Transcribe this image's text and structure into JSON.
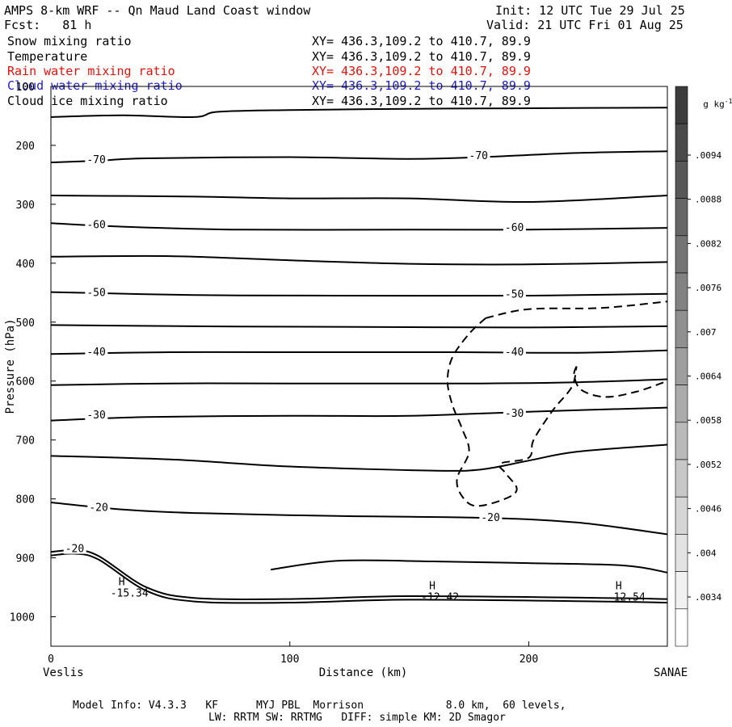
{
  "header": {
    "title": "AMPS 8-km WRF -- Qn Maud Land Coast window",
    "fcst": "Fcst:   81 h",
    "init": "Init: 12 UTC Tue 29 Jul 25",
    "valid": "Valid: 21 UTC Fri 01 Aug 25"
  },
  "fields": [
    {
      "name": "Snow mixing ratio",
      "xy": "XY= 436.3,109.2 to 410.7, 89.9",
      "color": "#000000"
    },
    {
      "name": "Temperature",
      "xy": "XY= 436.3,109.2 to 410.7, 89.9",
      "color": "#000000"
    },
    {
      "name": "Rain water mixing ratio",
      "xy": "XY= 436.3,109.2 to 410.7, 89.9",
      "color": "#e01010"
    },
    {
      "name": "Cloud water mixing ratio",
      "xy": "XY= 436.3,109.2 to 410.7, 89.9",
      "color": "#2020c0"
    },
    {
      "name": "Cloud ice mixing ratio",
      "xy": "XY= 436.3,109.2 to 410.7, 89.9",
      "color": "#000000"
    }
  ],
  "colorbar": {
    "unit": "g kg",
    "unit_sup": "-1",
    "labels": [
      ".0094",
      ".0088",
      ".0082",
      ".0076",
      ".007",
      ".0064",
      ".0058",
      ".0052",
      ".0046",
      ".004",
      ".0034"
    ]
  },
  "footer": {
    "line1": "Model Info: V4.3.3   KF      MYJ PBL  Morrison             8.0 km,  60 levels,",
    "line2": "LW: RRTM SW: RRTMG   DIFF: simple KM: 2D Smagor"
  },
  "chart_data": {
    "type": "line",
    "xlabel": "Distance (km)",
    "ylabel": "Pressure (hPa)",
    "xlim": [
      0,
      258
    ],
    "ylim": [
      1050,
      100
    ],
    "xticks": [
      0,
      100,
      200
    ],
    "yticks": [
      100,
      200,
      300,
      400,
      500,
      600,
      700,
      800,
      900,
      1000
    ],
    "x_endpoint_labels": {
      "left": "Veslis",
      "right": "SANAE"
    },
    "isotherms": [
      {
        "label": "-70",
        "points": [
          [
            0,
            152
          ],
          [
            30,
            149
          ],
          [
            60,
            152
          ],
          [
            70,
            143
          ],
          [
            100,
            140
          ],
          [
            150,
            138
          ],
          [
            200,
            137
          ],
          [
            258,
            136
          ]
        ]
      },
      {
        "label": "-70",
        "points": [
          [
            0,
            229
          ],
          [
            20,
            226
          ],
          [
            40,
            222
          ],
          [
            100,
            220
          ],
          [
            150,
            223
          ],
          [
            180,
            220
          ],
          [
            220,
            213
          ],
          [
            258,
            210
          ]
        ]
      },
      {
        "label": "",
        "points": [
          [
            0,
            285
          ],
          [
            60,
            287
          ],
          [
            100,
            290
          ],
          [
            150,
            290
          ],
          [
            200,
            296
          ],
          [
            258,
            285
          ]
        ]
      },
      {
        "label": "-60",
        "points": [
          [
            0,
            332
          ],
          [
            30,
            338
          ],
          [
            80,
            343
          ],
          [
            150,
            343
          ],
          [
            200,
            343
          ],
          [
            258,
            340
          ]
        ]
      },
      {
        "label": "",
        "points": [
          [
            0,
            389
          ],
          [
            50,
            388
          ],
          [
            100,
            395
          ],
          [
            150,
            401
          ],
          [
            200,
            402
          ],
          [
            258,
            398
          ]
        ]
      },
      {
        "label": "-50",
        "points": [
          [
            0,
            449
          ],
          [
            60,
            454
          ],
          [
            120,
            455
          ],
          [
            200,
            455
          ],
          [
            258,
            452
          ]
        ]
      },
      {
        "label": "",
        "points": [
          [
            0,
            505
          ],
          [
            60,
            507
          ],
          [
            120,
            508
          ],
          [
            200,
            509
          ],
          [
            258,
            507
          ]
        ]
      },
      {
        "label": "-40",
        "points": [
          [
            0,
            554
          ],
          [
            50,
            551
          ],
          [
            100,
            551
          ],
          [
            170,
            551
          ],
          [
            220,
            552
          ],
          [
            258,
            548
          ]
        ]
      },
      {
        "label": "",
        "points": [
          [
            0,
            607
          ],
          [
            50,
            604
          ],
          [
            100,
            604
          ],
          [
            180,
            604
          ],
          [
            220,
            602
          ],
          [
            258,
            597
          ]
        ]
      },
      {
        "label": "-30",
        "points": [
          [
            0,
            667
          ],
          [
            40,
            661
          ],
          [
            100,
            659
          ],
          [
            150,
            659
          ],
          [
            200,
            652
          ],
          [
            258,
            645
          ]
        ]
      },
      {
        "label": "",
        "points": [
          [
            0,
            727
          ],
          [
            50,
            733
          ],
          [
            100,
            745
          ],
          [
            160,
            752
          ],
          [
            180,
            750
          ],
          [
            200,
            735
          ],
          [
            220,
            720
          ],
          [
            258,
            708
          ]
        ]
      },
      {
        "label": "-20",
        "points": [
          [
            0,
            806
          ],
          [
            30,
            818
          ],
          [
            60,
            824
          ],
          [
            120,
            829
          ],
          [
            180,
            832
          ],
          [
            220,
            840
          ],
          [
            258,
            860
          ]
        ]
      },
      {
        "label": "",
        "points": [
          [
            92,
            920
          ],
          [
            120,
            905
          ],
          [
            160,
            906
          ],
          [
            200,
            909
          ],
          [
            240,
            913
          ],
          [
            258,
            925
          ]
        ]
      },
      {
        "label": "-20",
        "points": [
          [
            0,
            890
          ],
          [
            10,
            887
          ],
          [
            20,
            897
          ],
          [
            40,
            950
          ],
          [
            60,
            968
          ],
          [
            100,
            970
          ],
          [
            150,
            965
          ],
          [
            230,
            968
          ],
          [
            258,
            970
          ]
        ]
      }
    ],
    "highs": [
      {
        "label": "H",
        "value": "-15.34",
        "x": 30,
        "p": 960
      },
      {
        "label": "H",
        "value": "-12.42",
        "x": 160,
        "p": 967
      },
      {
        "label": "H",
        "value": "-12.54",
        "x": 238,
        "p": 967
      }
    ],
    "cloud_ice_dashed": [
      {
        "points": [
          [
            182,
            493
          ],
          [
            200,
            478
          ],
          [
            230,
            476
          ],
          [
            258,
            465
          ]
        ]
      },
      {
        "points": [
          [
            182,
            493
          ],
          [
            175,
            520
          ],
          [
            168,
            560
          ],
          [
            166,
            600
          ],
          [
            168,
            640
          ],
          [
            172,
            680
          ],
          [
            175,
            720
          ],
          [
            170,
            765
          ],
          [
            172,
            795
          ],
          [
            178,
            812
          ],
          [
            190,
            800
          ],
          [
            195,
            783
          ],
          [
            190,
            755
          ],
          [
            188,
            740
          ],
          [
            200,
            730
          ],
          [
            202,
            700
          ],
          [
            210,
            650
          ],
          [
            218,
            610
          ],
          [
            220,
            575
          ]
        ]
      },
      {
        "points": [
          [
            220,
            575
          ],
          [
            219,
            590
          ],
          [
            222,
            615
          ],
          [
            232,
            627
          ],
          [
            245,
            618
          ],
          [
            258,
            600
          ]
        ]
      }
    ]
  }
}
